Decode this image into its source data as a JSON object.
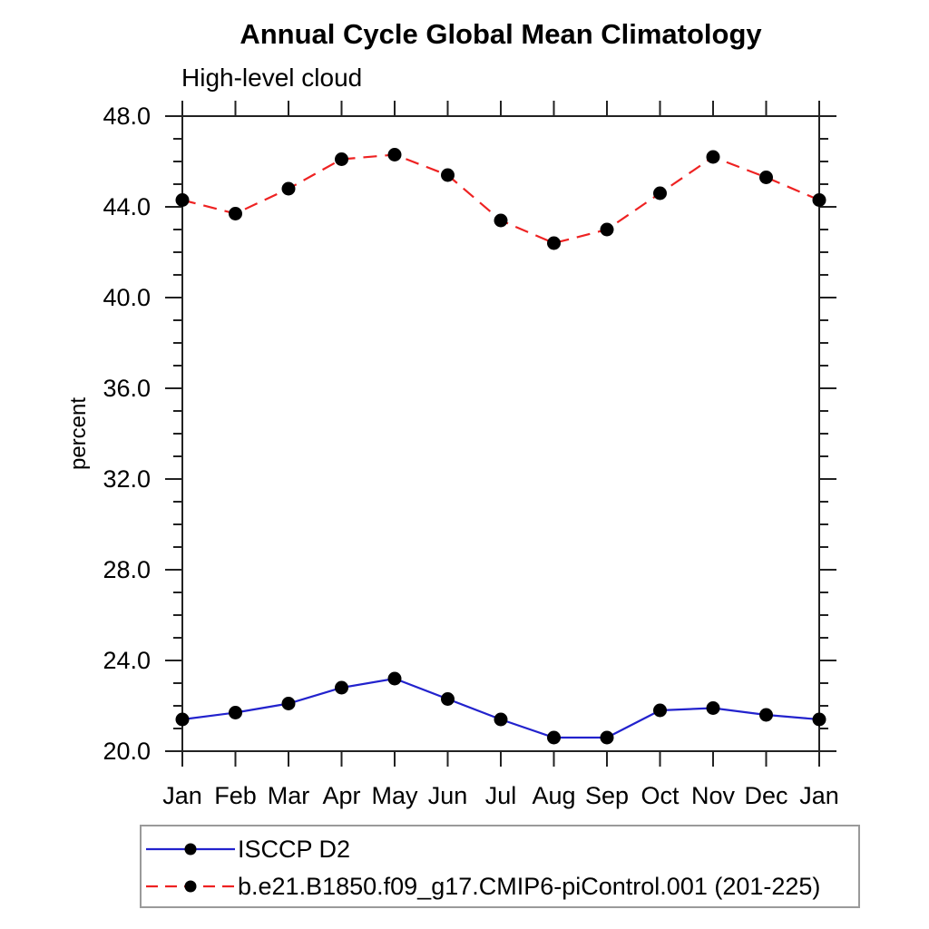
{
  "page": {
    "background": "#ffffff"
  },
  "header": {
    "title": "Annual Cycle Global Mean Climatology",
    "subtitle": "High-level cloud"
  },
  "chart_data": {
    "type": "line",
    "title": "Annual Cycle Global Mean Climatology",
    "subtitle": "High-level cloud",
    "ylabel": "percent",
    "xlabel": "",
    "x_categories": [
      "Jan",
      "Feb",
      "Mar",
      "Apr",
      "May",
      "Jun",
      "Jul",
      "Aug",
      "Sep",
      "Oct",
      "Nov",
      "Dec",
      "Jan"
    ],
    "ylim": [
      20.0,
      48.0
    ],
    "y_major_ticks": [
      20.0,
      24.0,
      28.0,
      32.0,
      36.0,
      40.0,
      44.0,
      48.0
    ],
    "y_minor_step": 1.0,
    "grid": false,
    "tick_style": "outward-all-sides",
    "legend_position": "bottom-left-box",
    "series": [
      {
        "name": "ISCCP D2",
        "color": "#2222cd",
        "line_style": "solid",
        "marker": "filled-circle",
        "marker_color": "#000000",
        "values": [
          21.4,
          21.7,
          22.1,
          22.8,
          23.2,
          22.3,
          21.4,
          20.6,
          20.6,
          21.8,
          21.9,
          21.6,
          21.4
        ]
      },
      {
        "name": "b.e21.B1850.f09_g17.CMIP6-piControl.001 (201-225)",
        "color": "#ee2222",
        "line_style": "dashed",
        "marker": "filled-circle",
        "marker_color": "#000000",
        "values": [
          44.3,
          43.7,
          44.8,
          46.1,
          46.3,
          45.4,
          43.4,
          42.4,
          43.0,
          44.6,
          46.2,
          45.3,
          44.3
        ]
      }
    ]
  }
}
